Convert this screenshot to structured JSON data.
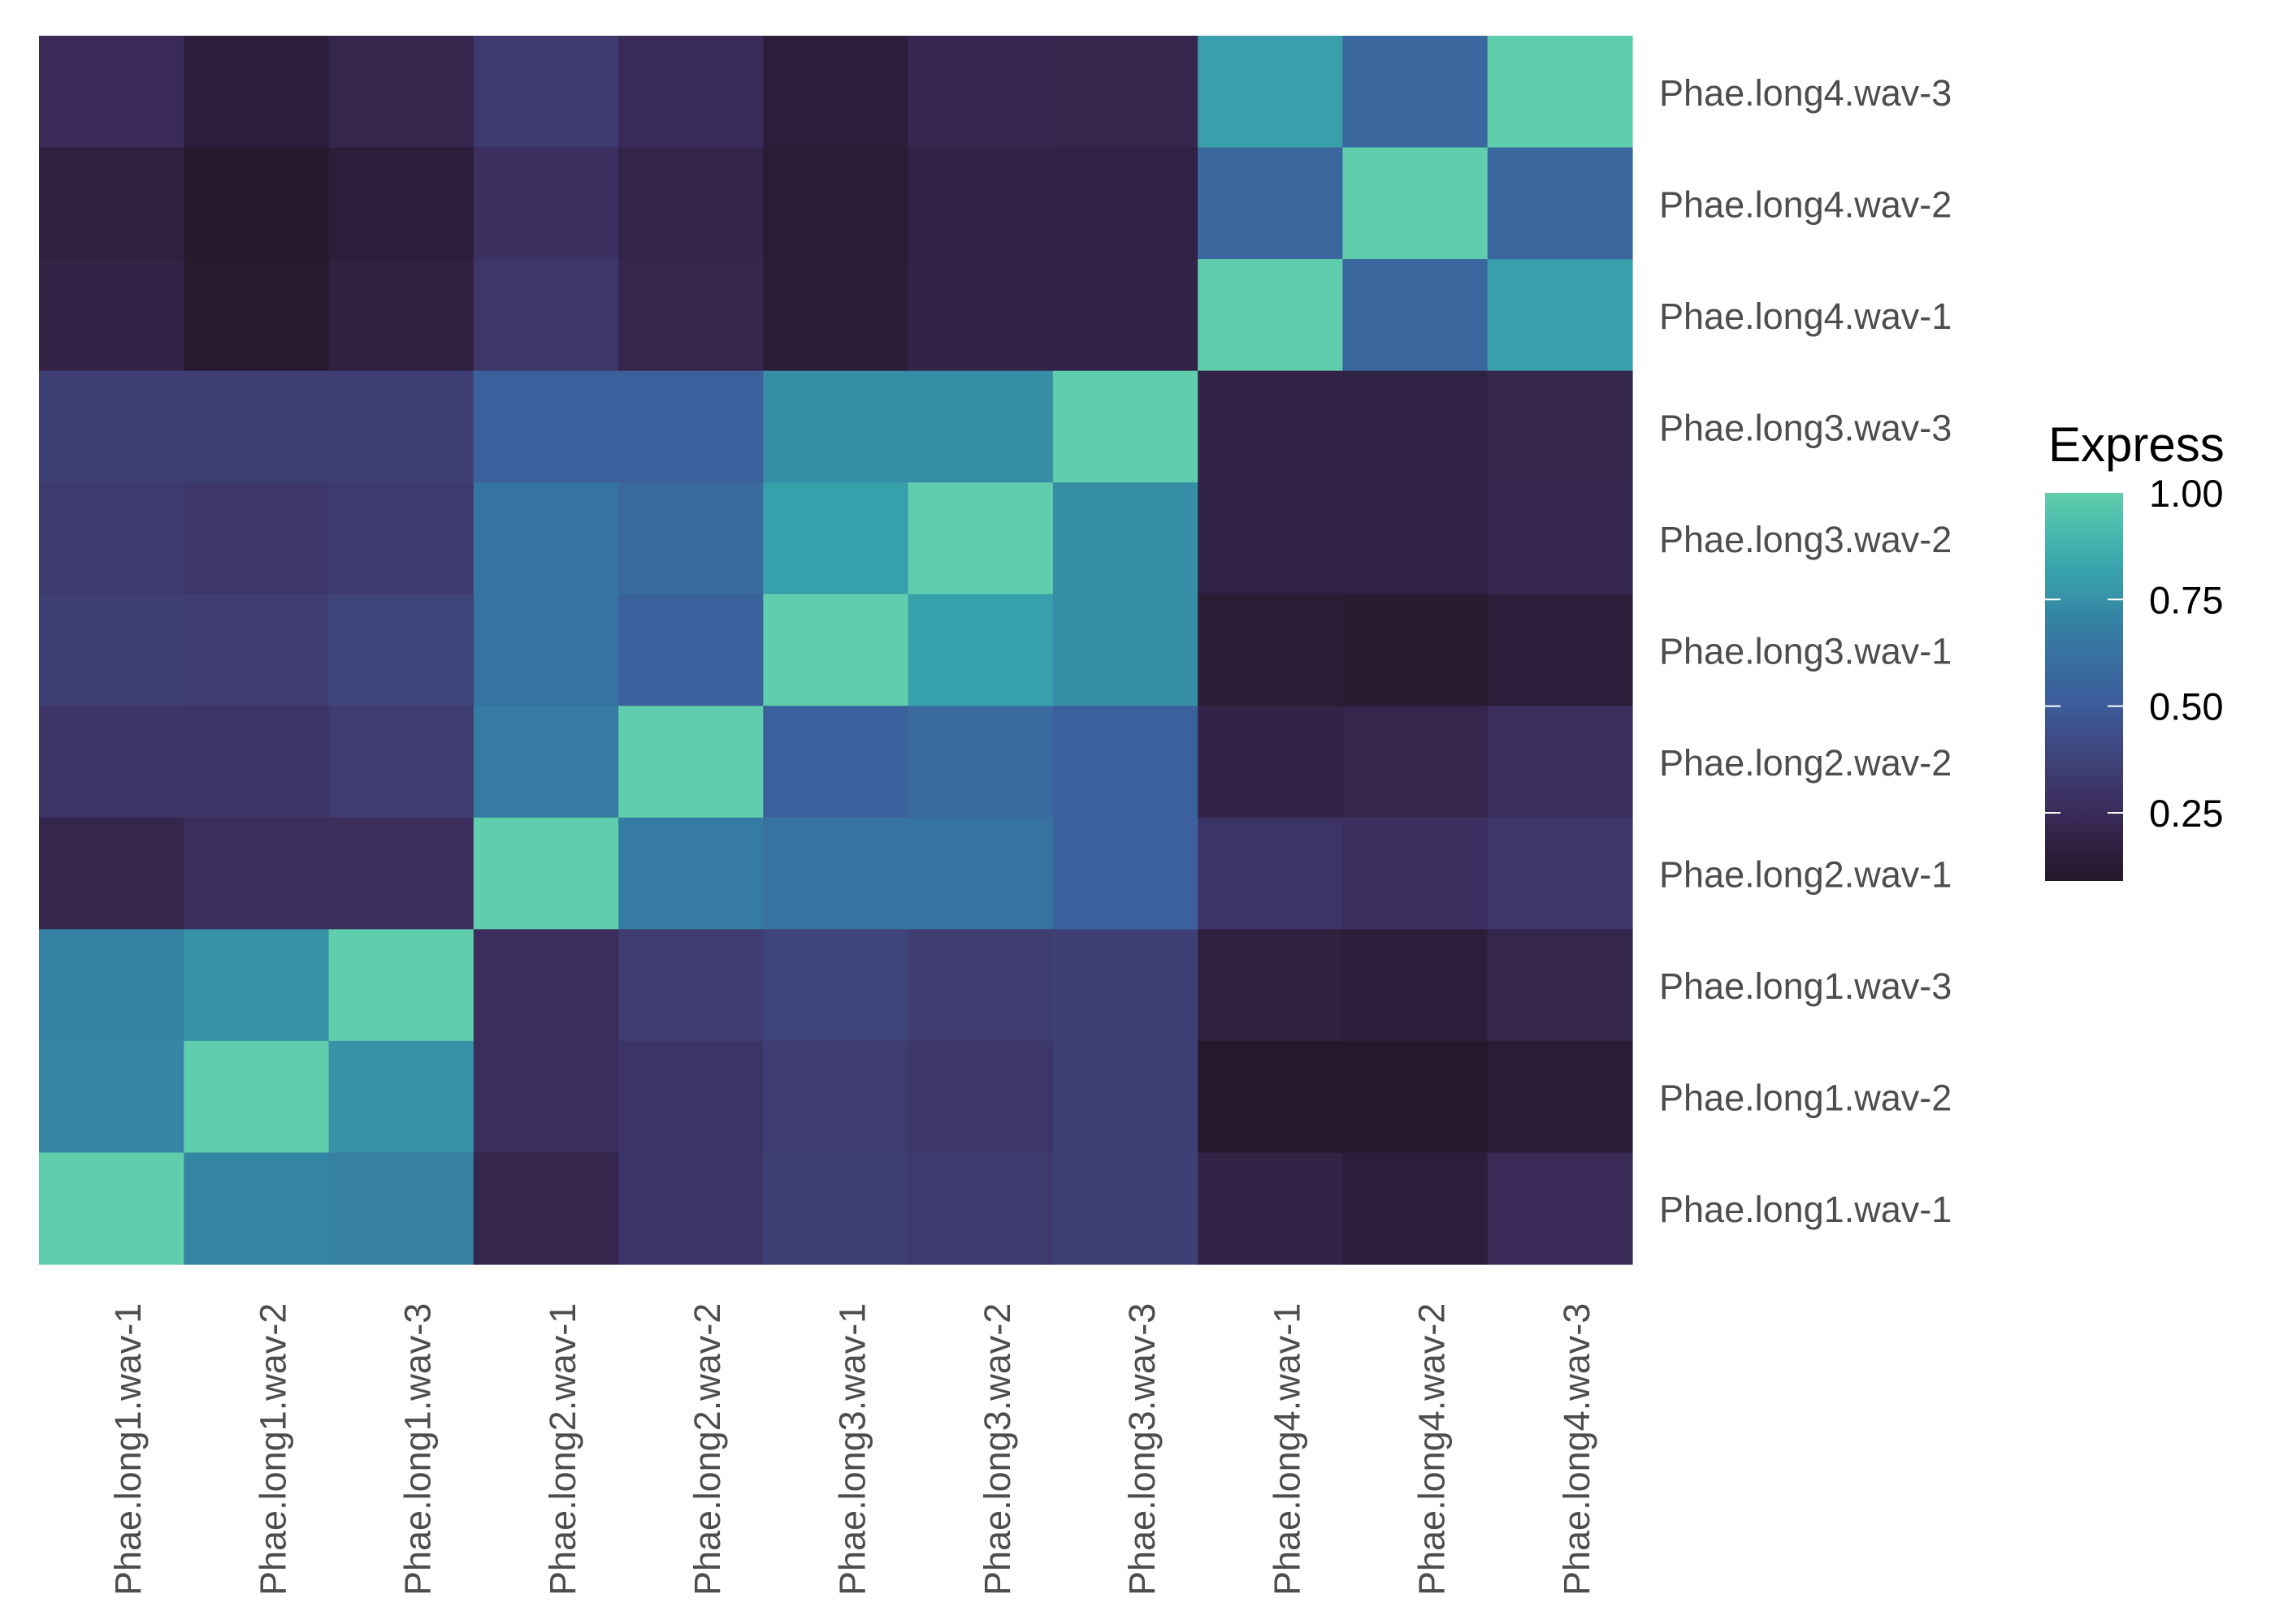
{
  "chart_data": {
    "type": "heatmap",
    "title": "",
    "xlabel": "",
    "ylabel": "",
    "x_categories": [
      "Phae.long1.wav-1",
      "Phae.long1.wav-2",
      "Phae.long1.wav-3",
      "Phae.long2.wav-1",
      "Phae.long2.wav-2",
      "Phae.long3.wav-1",
      "Phae.long3.wav-2",
      "Phae.long3.wav-3",
      "Phae.long4.wav-1",
      "Phae.long4.wav-2",
      "Phae.long4.wav-3"
    ],
    "y_categories_top_to_bottom": [
      "Phae.long4.wav-3",
      "Phae.long4.wav-2",
      "Phae.long4.wav-1",
      "Phae.long3.wav-3",
      "Phae.long3.wav-2",
      "Phae.long3.wav-1",
      "Phae.long2.wav-2",
      "Phae.long2.wav-1",
      "Phae.long1.wav-3",
      "Phae.long1.wav-2",
      "Phae.long1.wav-1"
    ],
    "values_rows_top_to_bottom": [
      [
        0.24,
        0.15,
        0.21,
        0.33,
        0.25,
        0.15,
        0.22,
        0.21,
        0.8,
        0.57,
        1.0
      ],
      [
        0.17,
        0.1,
        0.15,
        0.27,
        0.2,
        0.13,
        0.18,
        0.18,
        0.57,
        1.0,
        0.57
      ],
      [
        0.19,
        0.11,
        0.17,
        0.31,
        0.21,
        0.13,
        0.19,
        0.19,
        1.0,
        0.57,
        0.8
      ],
      [
        0.36,
        0.36,
        0.36,
        0.52,
        0.53,
        0.74,
        0.74,
        1.0,
        0.19,
        0.18,
        0.21
      ],
      [
        0.33,
        0.31,
        0.33,
        0.63,
        0.58,
        0.81,
        1.0,
        0.74,
        0.18,
        0.18,
        0.22
      ],
      [
        0.35,
        0.34,
        0.38,
        0.63,
        0.53,
        1.0,
        0.81,
        0.74,
        0.13,
        0.12,
        0.15
      ],
      [
        0.3,
        0.3,
        0.34,
        0.67,
        1.0,
        0.53,
        0.58,
        0.53,
        0.19,
        0.21,
        0.26
      ],
      [
        0.21,
        0.26,
        0.26,
        1.0,
        0.67,
        0.63,
        0.63,
        0.52,
        0.3,
        0.27,
        0.31
      ],
      [
        0.7,
        0.75,
        1.0,
        0.26,
        0.34,
        0.38,
        0.34,
        0.36,
        0.17,
        0.15,
        0.21
      ],
      [
        0.71,
        1.0,
        0.75,
        0.26,
        0.3,
        0.34,
        0.31,
        0.36,
        0.09,
        0.09,
        0.13
      ],
      [
        1.0,
        0.71,
        0.69,
        0.21,
        0.3,
        0.35,
        0.33,
        0.36,
        0.19,
        0.15,
        0.24
      ]
    ],
    "legend": {
      "title": "Express",
      "position": "right",
      "ticks": [
        1.0,
        0.75,
        0.5,
        0.25
      ],
      "tick_labels": [
        "1.00",
        "0.75",
        "0.50",
        "0.25"
      ],
      "range": [
        0.09,
        1.0
      ]
    },
    "colormap": {
      "name": "mako",
      "stops": [
        {
          "v": 0.09,
          "c": "#25182A"
        },
        {
          "v": 0.15,
          "c": "#2C1E3A"
        },
        {
          "v": 0.2,
          "c": "#33244A"
        },
        {
          "v": 0.25,
          "c": "#3A2C5A"
        },
        {
          "v": 0.3,
          "c": "#3D3466"
        },
        {
          "v": 0.35,
          "c": "#3E3E72"
        },
        {
          "v": 0.42,
          "c": "#3D4A85"
        },
        {
          "v": 0.5,
          "c": "#3C5C9B"
        },
        {
          "v": 0.58,
          "c": "#3A6A9E"
        },
        {
          "v": 0.65,
          "c": "#3677A1"
        },
        {
          "v": 0.72,
          "c": "#3587A5"
        },
        {
          "v": 0.78,
          "c": "#389AA9"
        },
        {
          "v": 0.82,
          "c": "#37A3AC"
        },
        {
          "v": 0.9,
          "c": "#45B7AE"
        },
        {
          "v": 1.0,
          "c": "#60CEAC"
        }
      ]
    },
    "colors": {
      "axis_text": "#4D4D4D",
      "legend_text": "#000000",
      "tick_mark": "#FFFFFF",
      "background": "#FFFFFF"
    }
  }
}
